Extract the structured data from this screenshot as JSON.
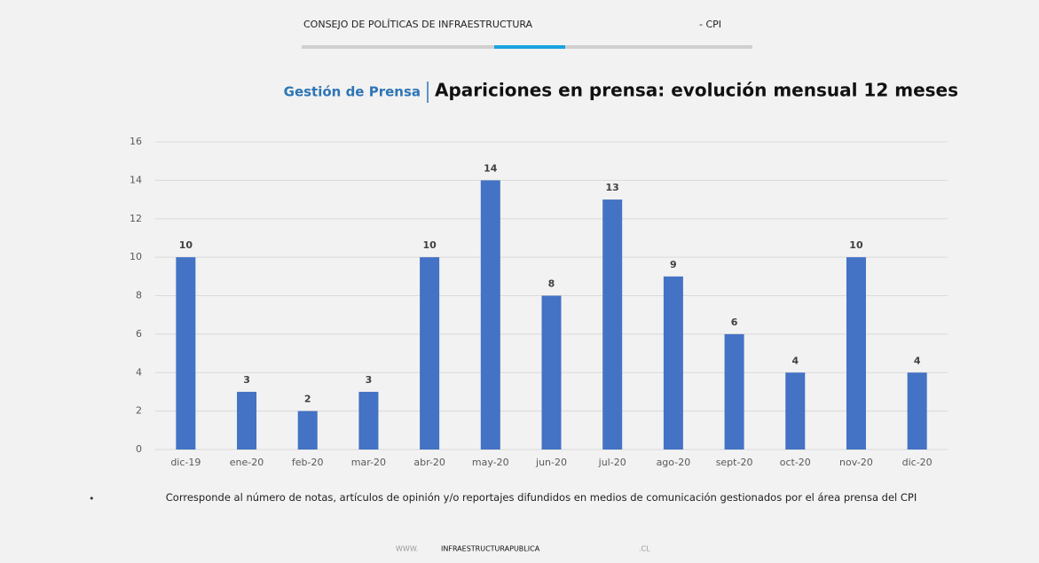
{
  "header": {
    "organization": "CONSEJO DE POLÍTICAS DE INFRAESTRUCTURA",
    "acronym": "- CPI"
  },
  "chart_data": {
    "type": "bar",
    "section": "Gestión de Prensa",
    "title": "Apariciones en prensa: evolución mensual 12 meses",
    "categories": [
      "dic-19",
      "ene-20",
      "feb-20",
      "mar-20",
      "abr-20",
      "may-20",
      "jun-20",
      "jul-20",
      "ago-20",
      "sept-20",
      "oct-20",
      "nov-20",
      "dic-20"
    ],
    "values": [
      10,
      3,
      2,
      3,
      10,
      14,
      8,
      13,
      9,
      6,
      4,
      10,
      4
    ],
    "color": "#4472c4",
    "ylim": [
      0,
      16
    ],
    "yticks": [
      0,
      2,
      4,
      6,
      8,
      10,
      12,
      14,
      16
    ],
    "grid": true
  },
  "note": {
    "bullet": "•",
    "text": "Corresponde al número de notas, artículos de opinión y/o reportajes difundidos en medios de comunicación gestionados por el área prensa del CPI"
  },
  "footer": {
    "prefix": "WWW.",
    "domain": "INFRAESTRUCTURAPUBLICA",
    "suffix": ".CL"
  }
}
